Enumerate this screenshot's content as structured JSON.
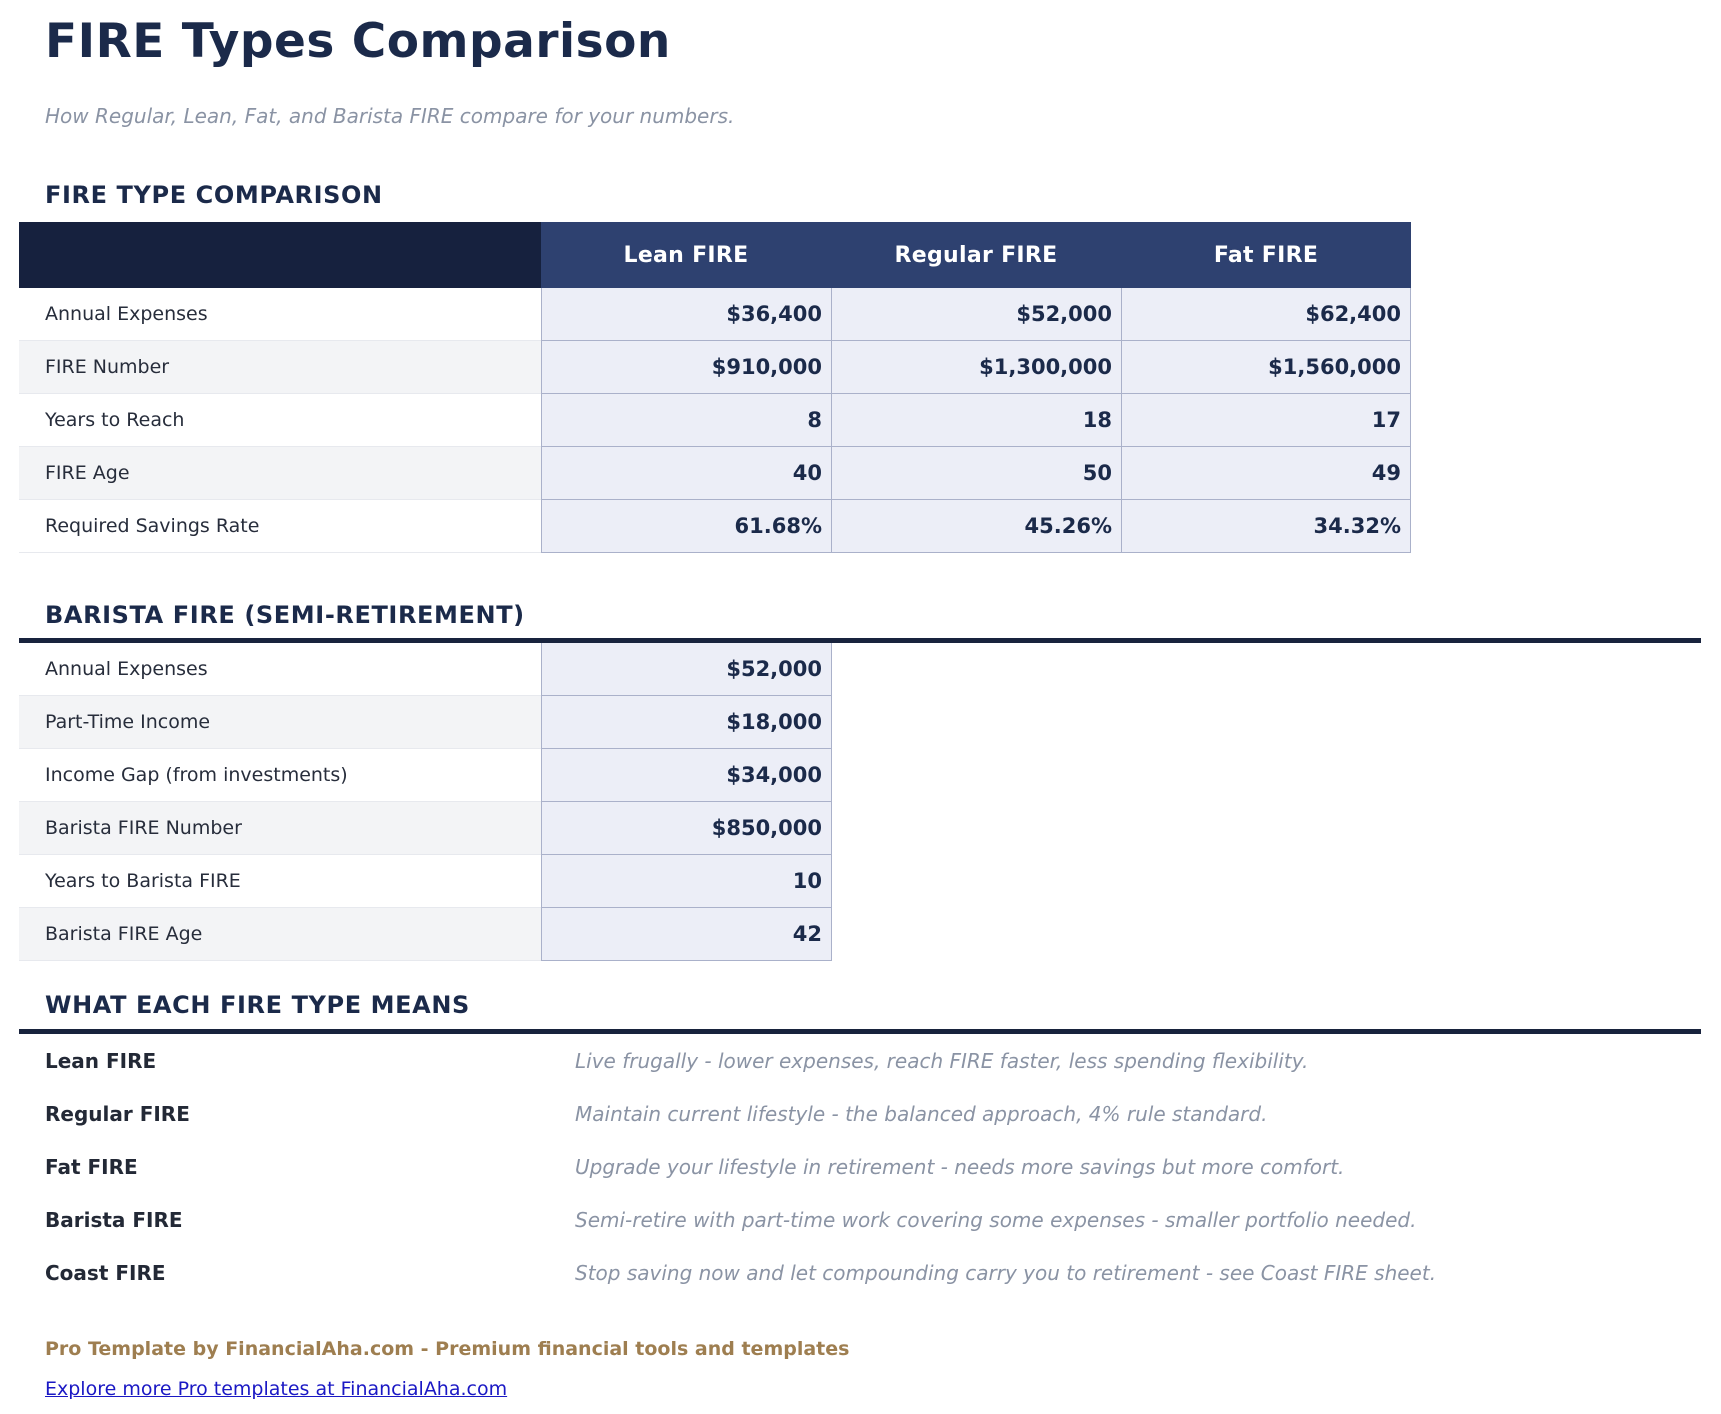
{
  "page": {
    "title": "FIRE Types Comparison",
    "subtitle": "How Regular, Lean, Fat, and Barista FIRE compare for your numbers."
  },
  "colors": {
    "title_navy": "#1b2a4a",
    "table_corner_navy": "#16213e",
    "table_header_navy": "#2e4170",
    "value_cell_fill": "#eceef7",
    "value_cell_border": "#aab1ca",
    "alt_row_gray": "#f3f4f6",
    "muted_italic_gray": "#8a93a4",
    "footer_brown": "#9e7e50",
    "link_blue": "#1a18c4"
  },
  "comparison_table": {
    "heading": "FIRE TYPE COMPARISON",
    "columns": [
      "Lean FIRE",
      "Regular FIRE",
      "Fat FIRE"
    ],
    "rows": [
      {
        "label": "Annual Expenses",
        "values": [
          "$36,400",
          "$52,000",
          "$62,400"
        ]
      },
      {
        "label": "FIRE Number",
        "values": [
          "$910,000",
          "$1,300,000",
          "$1,560,000"
        ]
      },
      {
        "label": "Years to Reach",
        "values": [
          "8",
          "18",
          "17"
        ]
      },
      {
        "label": "FIRE Age",
        "values": [
          "40",
          "50",
          "49"
        ]
      },
      {
        "label": "Required Savings Rate",
        "values": [
          "61.68%",
          "45.26%",
          "34.32%"
        ]
      }
    ]
  },
  "barista_table": {
    "heading": "BARISTA FIRE (SEMI-RETIREMENT)",
    "rows": [
      {
        "label": "Annual Expenses",
        "value": "$52,000"
      },
      {
        "label": "Part-Time Income",
        "value": "$18,000"
      },
      {
        "label": "Income Gap (from investments)",
        "value": "$34,000"
      },
      {
        "label": "Barista FIRE Number",
        "value": "$850,000"
      },
      {
        "label": "Years to Barista FIRE",
        "value": "10"
      },
      {
        "label": "Barista FIRE Age",
        "value": "42"
      }
    ]
  },
  "definitions": {
    "heading": "WHAT EACH FIRE TYPE MEANS",
    "rows": [
      {
        "term": "Lean FIRE",
        "description": "Live frugally - lower expenses, reach FIRE faster, less spending flexibility."
      },
      {
        "term": "Regular FIRE",
        "description": "Maintain current lifestyle - the balanced approach, 4% rule standard."
      },
      {
        "term": "Fat FIRE",
        "description": "Upgrade your lifestyle in retirement - needs more savings but more comfort."
      },
      {
        "term": "Barista FIRE",
        "description": "Semi-retire with part-time work covering some expenses - smaller portfolio needed."
      },
      {
        "term": "Coast FIRE",
        "description": "Stop saving now and let compounding carry you to retirement - see Coast FIRE sheet."
      }
    ]
  },
  "footer": {
    "credit": "Pro Template by FinancialAha.com - Premium financial tools and templates",
    "link": "Explore more Pro templates at FinancialAha.com"
  }
}
